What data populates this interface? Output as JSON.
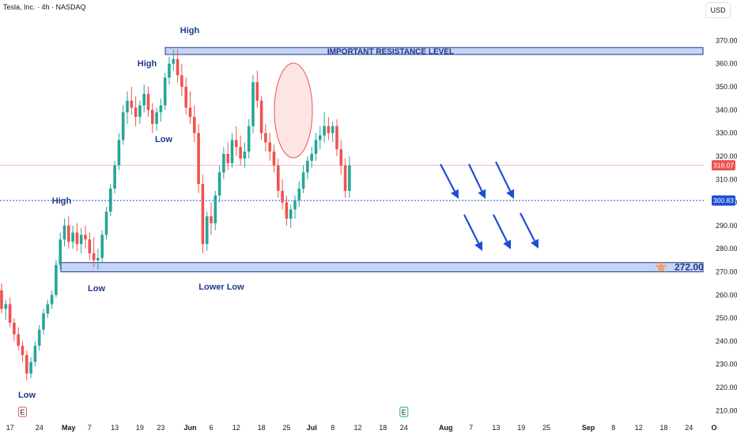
{
  "header": {
    "symbol_title": "Tesla, Inc. · 4h · NASDAQ",
    "currency": "USD"
  },
  "colors": {
    "up": "#26a69a",
    "down": "#ef5350",
    "zone_fill": "#c5d3f5",
    "zone_stroke": "#1e3a8a",
    "annotation": "#1e3a8a",
    "arrow": "#1d4ed8",
    "price_line_red": "#ef5350",
    "price_line_blue": "#1d4ed8",
    "star": "#f4a261"
  },
  "chart_data": {
    "type": "candlestick",
    "y_axis": {
      "ticks": [
        370,
        360,
        350,
        340,
        330,
        320,
        310,
        300,
        290,
        280,
        270,
        260,
        250,
        240,
        230,
        220,
        210
      ],
      "range": [
        206,
        378
      ],
      "position": "right"
    },
    "x_axis": {
      "ticks": [
        {
          "label": "17",
          "idx": 2
        },
        {
          "label": "24",
          "idx": 9
        },
        {
          "label": "May",
          "idx": 16
        },
        {
          "label": "7",
          "idx": 21
        },
        {
          "label": "13",
          "idx": 27
        },
        {
          "label": "19",
          "idx": 33
        },
        {
          "label": "23",
          "idx": 38
        },
        {
          "label": "Jun",
          "idx": 45
        },
        {
          "label": "6",
          "idx": 50
        },
        {
          "label": "12",
          "idx": 56
        },
        {
          "label": "18",
          "idx": 62
        },
        {
          "label": "25",
          "idx": 68
        },
        {
          "label": "Jul",
          "idx": 74
        },
        {
          "label": "8",
          "idx": 79
        },
        {
          "label": "12",
          "idx": 85
        },
        {
          "label": "18",
          "idx": 91
        },
        {
          "label": "24",
          "idx": 96
        },
        {
          "label": "Aug",
          "idx": 106
        },
        {
          "label": "7",
          "idx": 112
        },
        {
          "label": "13",
          "idx": 118
        },
        {
          "label": "19",
          "idx": 124
        },
        {
          "label": "25",
          "idx": 130
        },
        {
          "label": "Sep",
          "idx": 140
        },
        {
          "label": "8",
          "idx": 146
        },
        {
          "label": "12",
          "idx": 152
        },
        {
          "label": "18",
          "idx": 158
        },
        {
          "label": "24",
          "idx": 164
        },
        {
          "label": "O",
          "idx": 170
        }
      ]
    },
    "candles": [
      [
        262,
        265,
        252,
        254
      ],
      [
        254,
        258,
        249,
        256
      ],
      [
        256,
        259,
        246,
        248
      ],
      [
        248,
        250,
        240,
        243
      ],
      [
        243,
        246,
        236,
        238
      ],
      [
        238,
        240,
        231,
        234
      ],
      [
        234,
        236,
        223,
        226
      ],
      [
        226,
        233,
        224,
        231
      ],
      [
        231,
        240,
        229,
        238
      ],
      [
        238,
        247,
        236,
        245
      ],
      [
        245,
        254,
        243,
        252
      ],
      [
        252,
        258,
        250,
        256
      ],
      [
        256,
        262,
        254,
        260
      ],
      [
        260,
        275,
        259,
        273
      ],
      [
        273,
        287,
        271,
        284
      ],
      [
        284,
        293,
        281,
        290
      ],
      [
        290,
        294,
        280,
        283
      ],
      [
        283,
        290,
        280,
        287
      ],
      [
        287,
        291,
        279,
        282
      ],
      [
        282,
        289,
        278,
        286
      ],
      [
        286,
        290,
        280,
        284
      ],
      [
        284,
        287,
        275,
        278
      ],
      [
        278,
        285,
        272,
        275
      ],
      [
        275,
        280,
        271,
        276
      ],
      [
        276,
        288,
        274,
        286
      ],
      [
        286,
        298,
        284,
        296
      ],
      [
        296,
        308,
        294,
        306
      ],
      [
        306,
        318,
        304,
        316
      ],
      [
        316,
        330,
        314,
        327
      ],
      [
        327,
        342,
        325,
        339
      ],
      [
        339,
        348,
        334,
        344
      ],
      [
        344,
        350,
        338,
        341
      ],
      [
        341,
        346,
        333,
        337
      ],
      [
        337,
        344,
        334,
        342
      ],
      [
        342,
        351,
        339,
        347
      ],
      [
        347,
        350,
        337,
        340
      ],
      [
        340,
        343,
        330,
        334
      ],
      [
        334,
        341,
        331,
        339
      ],
      [
        339,
        345,
        335,
        342
      ],
      [
        342,
        356,
        340,
        354
      ],
      [
        354,
        363,
        351,
        360
      ],
      [
        360,
        366,
        357,
        362
      ],
      [
        362,
        366,
        352,
        355
      ],
      [
        355,
        360,
        346,
        350
      ],
      [
        350,
        354,
        338,
        341
      ],
      [
        341,
        348,
        334,
        337
      ],
      [
        337,
        342,
        326,
        330
      ],
      [
        330,
        334,
        304,
        308
      ],
      [
        308,
        312,
        278,
        282
      ],
      [
        282,
        296,
        279,
        294
      ],
      [
        294,
        300,
        286,
        291
      ],
      [
        291,
        305,
        288,
        303
      ],
      [
        303,
        316,
        300,
        313
      ],
      [
        313,
        324,
        310,
        321
      ],
      [
        321,
        326,
        314,
        317
      ],
      [
        317,
        330,
        315,
        327
      ],
      [
        327,
        333,
        320,
        324
      ],
      [
        324,
        329,
        316,
        319
      ],
      [
        319,
        326,
        315,
        322
      ],
      [
        322,
        336,
        319,
        333
      ],
      [
        333,
        355,
        330,
        352
      ],
      [
        352,
        357,
        341,
        344
      ],
      [
        344,
        346,
        327,
        330
      ],
      [
        330,
        334,
        322,
        326
      ],
      [
        326,
        330,
        318,
        322
      ],
      [
        322,
        325,
        313,
        316
      ],
      [
        316,
        319,
        302,
        305
      ],
      [
        305,
        310,
        297,
        300
      ],
      [
        300,
        303,
        290,
        293
      ],
      [
        293,
        299,
        289,
        297
      ],
      [
        297,
        303,
        293,
        301
      ],
      [
        301,
        309,
        298,
        306
      ],
      [
        306,
        316,
        304,
        313
      ],
      [
        313,
        320,
        310,
        318
      ],
      [
        318,
        324,
        315,
        321
      ],
      [
        321,
        330,
        318,
        327
      ],
      [
        327,
        333,
        323,
        329
      ],
      [
        329,
        339,
        326,
        333
      ],
      [
        333,
        337,
        327,
        330
      ],
      [
        330,
        335,
        326,
        333
      ],
      [
        333,
        336,
        320,
        323
      ],
      [
        323,
        327,
        312,
        316
      ],
      [
        316,
        319,
        302,
        305
      ],
      [
        305,
        320,
        302,
        316
      ]
    ]
  },
  "annotations": {
    "high_1": "High",
    "high_2": "High",
    "high_3": "High",
    "low_1": "Low",
    "low_2": "Low",
    "low_3": "Low",
    "lower_low": "Lower Low",
    "resistance_label": "IMPORTANT RESISTANCE LEVEL",
    "target_value": "272.00"
  },
  "price_tags": {
    "current": "316.07",
    "level": "300.83"
  },
  "zones": {
    "resistance": [
      364,
      367
    ],
    "support": [
      270,
      274
    ]
  },
  "levels": {
    "current": 316.07,
    "horizontal": 300.83
  },
  "event_markers": [
    {
      "letter": "E",
      "kind": "earnings-past",
      "idx": 5
    },
    {
      "letter": "E",
      "kind": "earnings-recent",
      "idx": 96
    }
  ]
}
